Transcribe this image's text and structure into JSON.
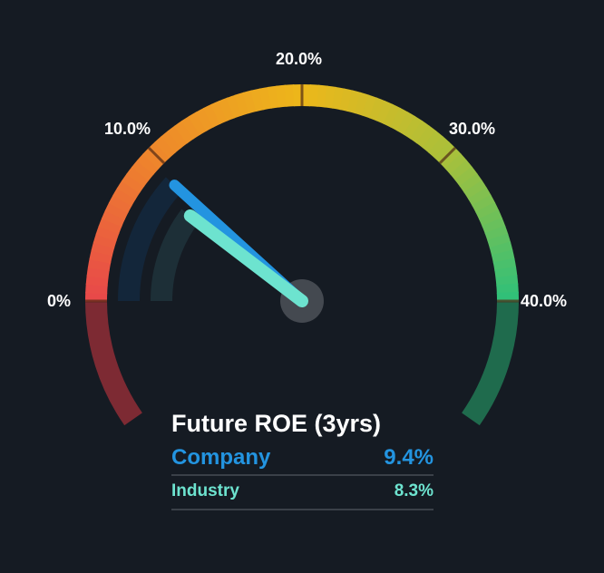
{
  "chart_data": {
    "type": "gauge",
    "title": "Future ROE (3yrs)",
    "min": 0,
    "max": 40,
    "ticks": [
      "0%",
      "10.0%",
      "20.0%",
      "30.0%",
      "40.0%"
    ],
    "series": [
      {
        "name": "Company",
        "value": 9.4,
        "label": "9.4%",
        "color": "#2394e0"
      },
      {
        "name": "Industry",
        "value": 8.3,
        "label": "8.3%",
        "color": "#6de3cf"
      }
    ]
  }
}
